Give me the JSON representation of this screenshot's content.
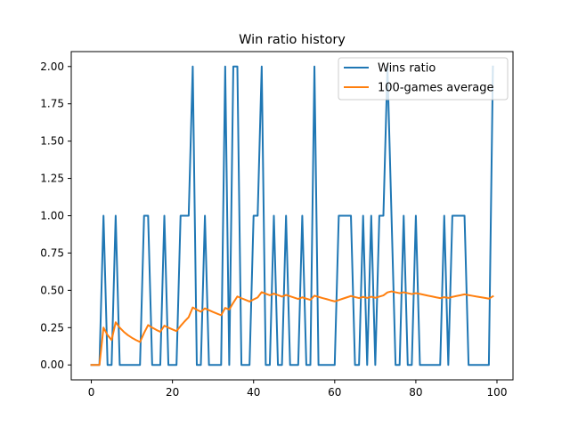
{
  "chart_data": {
    "type": "line",
    "title": "Win ratio history",
    "xlabel": "",
    "ylabel": "",
    "xlim": [
      -4.95,
      103.95
    ],
    "ylim": [
      -0.1,
      2.1
    ],
    "xticks": [
      0,
      20,
      40,
      60,
      80,
      100
    ],
    "yticks": [
      0.0,
      0.25,
      0.5,
      0.75,
      1.0,
      1.25,
      1.5,
      1.75,
      2.0
    ],
    "xtick_labels": [
      "0",
      "20",
      "40",
      "60",
      "80",
      "100"
    ],
    "ytick_labels": [
      "0.00",
      "0.25",
      "0.50",
      "0.75",
      "1.00",
      "1.25",
      "1.50",
      "1.75",
      "2.00"
    ],
    "grid": false,
    "legend_position": "top-right",
    "x": [
      0,
      1,
      2,
      3,
      4,
      5,
      6,
      7,
      8,
      9,
      10,
      11,
      12,
      13,
      14,
      15,
      16,
      17,
      18,
      19,
      20,
      21,
      22,
      23,
      24,
      25,
      26,
      27,
      28,
      29,
      30,
      31,
      32,
      33,
      34,
      35,
      36,
      37,
      38,
      39,
      40,
      41,
      42,
      43,
      44,
      45,
      46,
      47,
      48,
      49,
      50,
      51,
      52,
      53,
      54,
      55,
      56,
      57,
      58,
      59,
      60,
      61,
      62,
      63,
      64,
      65,
      66,
      67,
      68,
      69,
      70,
      71,
      72,
      73,
      74,
      75,
      76,
      77,
      78,
      79,
      80,
      81,
      82,
      83,
      84,
      85,
      86,
      87,
      88,
      89,
      90,
      91,
      92,
      93,
      94,
      95,
      96,
      97,
      98,
      99
    ],
    "series": [
      {
        "name": "Wins ratio",
        "color": "#1f77b4",
        "values": [
          0,
          0,
          0,
          1,
          0,
          0,
          1,
          0,
          0,
          0,
          0,
          0,
          0,
          1,
          1,
          0,
          0,
          0,
          1,
          0,
          0,
          0,
          1,
          1,
          1,
          2,
          0,
          0,
          1,
          0,
          0,
          0,
          0,
          2,
          0,
          2,
          2,
          0,
          0,
          0,
          1,
          1,
          2,
          0,
          0,
          1,
          0,
          0,
          1,
          0,
          0,
          0,
          1,
          0,
          0,
          2,
          0,
          0,
          0,
          0,
          0,
          1,
          1,
          1,
          1,
          0,
          0,
          1,
          0,
          1,
          0,
          1,
          1,
          2,
          1,
          0,
          0,
          1,
          0,
          0,
          1,
          0,
          0,
          0,
          0,
          0,
          0,
          1,
          0,
          1,
          1,
          1,
          1,
          0,
          0,
          0,
          0,
          0,
          0,
          2
        ]
      },
      {
        "name": "100-games average",
        "color": "#ff7f0e",
        "values": [
          0,
          0,
          0,
          0.25,
          0.2,
          0.167,
          0.286,
          0.25,
          0.222,
          0.2,
          0.182,
          0.167,
          0.154,
          0.214,
          0.267,
          0.25,
          0.235,
          0.222,
          0.263,
          0.25,
          0.238,
          0.227,
          0.261,
          0.292,
          0.32,
          0.385,
          0.37,
          0.357,
          0.379,
          0.367,
          0.355,
          0.344,
          0.333,
          0.382,
          0.371,
          0.417,
          0.459,
          0.447,
          0.436,
          0.425,
          0.439,
          0.452,
          0.488,
          0.477,
          0.467,
          0.478,
          0.468,
          0.458,
          0.469,
          0.46,
          0.451,
          0.442,
          0.453,
          0.444,
          0.436,
          0.464,
          0.456,
          0.448,
          0.441,
          0.433,
          0.426,
          0.435,
          0.444,
          0.453,
          0.462,
          0.455,
          0.448,
          0.456,
          0.449,
          0.457,
          0.45,
          0.458,
          0.466,
          0.486,
          0.493,
          0.487,
          0.481,
          0.487,
          0.481,
          0.475,
          0.481,
          0.476,
          0.47,
          0.464,
          0.459,
          0.453,
          0.448,
          0.454,
          0.449,
          0.456,
          0.462,
          0.467,
          0.473,
          0.468,
          0.463,
          0.458,
          0.454,
          0.449,
          0.444,
          0.46
        ]
      }
    ]
  }
}
